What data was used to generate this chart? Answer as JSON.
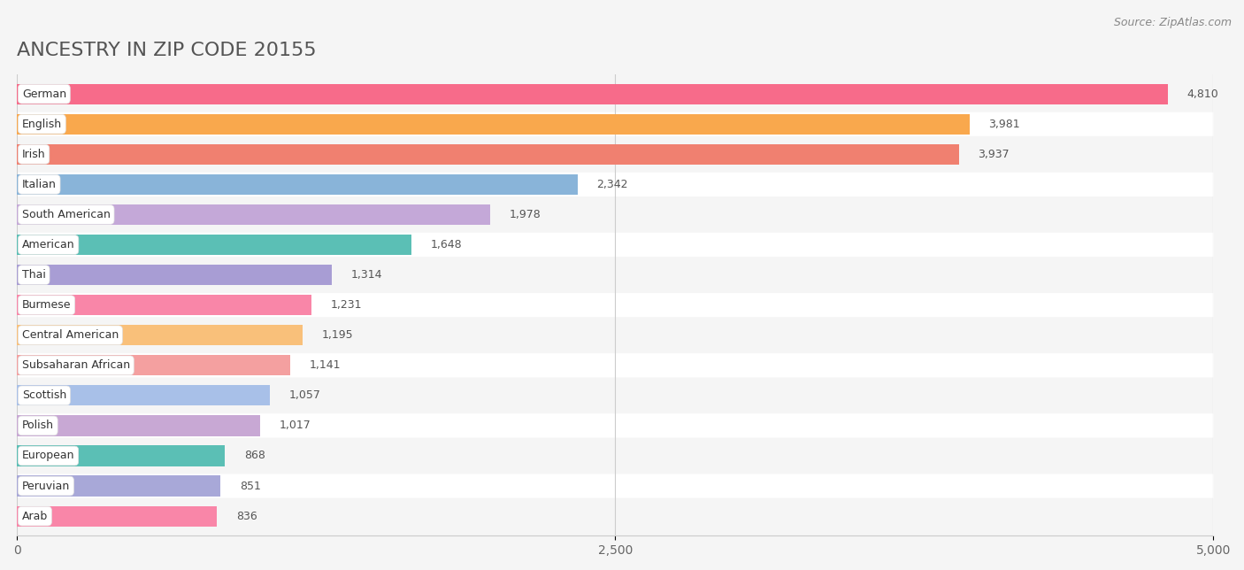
{
  "title": "ANCESTRY IN ZIP CODE 20155",
  "source": "Source: ZipAtlas.com",
  "categories": [
    "German",
    "English",
    "Irish",
    "Italian",
    "South American",
    "American",
    "Thai",
    "Burmese",
    "Central American",
    "Subsaharan African",
    "Scottish",
    "Polish",
    "European",
    "Peruvian",
    "Arab"
  ],
  "values": [
    4810,
    3981,
    3937,
    2342,
    1978,
    1648,
    1314,
    1231,
    1195,
    1141,
    1057,
    1017,
    868,
    851,
    836
  ],
  "bar_colors": [
    "#F76B8A",
    "#F9A84D",
    "#F08070",
    "#89B4D9",
    "#C4A8D8",
    "#5BBFB5",
    "#A89DD4",
    "#F986A8",
    "#F9C07A",
    "#F4A0A0",
    "#A8C0E8",
    "#C8A8D4",
    "#5BBFB5",
    "#A8A8D8",
    "#F986A8"
  ],
  "row_colors": [
    "#f5f5f5",
    "#ffffff"
  ],
  "xlim": [
    0,
    5000
  ],
  "xticks": [
    0,
    2500,
    5000
  ],
  "background_color": "#f5f5f5",
  "title_fontsize": 16,
  "source_fontsize": 9
}
